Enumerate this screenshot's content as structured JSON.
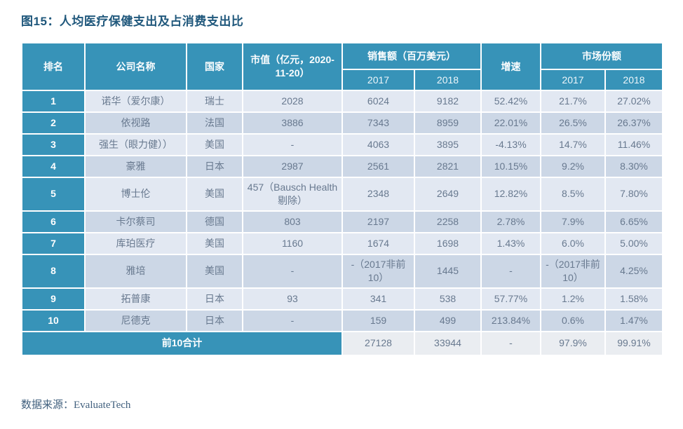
{
  "page": {
    "title": "图15：人均医疗保健支出及占消费支出比",
    "source": "数据来源：EvaluateTech"
  },
  "colors": {
    "header_teal": "#3793b8",
    "row_light": "#e2e8f2",
    "row_dark": "#ccd7e6",
    "total_row_bg": "#eaedf1",
    "title_blue": "#20587c",
    "data_text": "#68798f",
    "source_blue": "#41607e"
  },
  "table": {
    "headers": {
      "rank": "排名",
      "company": "公司名称",
      "country": "国家",
      "market_cap": "市值（亿元，2020-11-20）",
      "sales_group": "销售额（百万美元）",
      "growth": "增速",
      "share_group": "市场份额",
      "year_2017": "2017",
      "year_2018": "2018"
    },
    "rows": [
      {
        "rank": "1",
        "company": "诺华（爱尔康）",
        "country": "瑞士",
        "market_cap": "2028",
        "sales_2017": "6024",
        "sales_2018": "9182",
        "growth": "52.42%",
        "share_2017": "21.7%",
        "share_2018": "27.02%"
      },
      {
        "rank": "2",
        "company": "依视路",
        "country": "法国",
        "market_cap": "3886",
        "sales_2017": "7343",
        "sales_2018": "8959",
        "growth": "22.01%",
        "share_2017": "26.5%",
        "share_2018": "26.37%"
      },
      {
        "rank": "3",
        "company": "强生（眼力健））",
        "country": "美国",
        "market_cap": "-",
        "sales_2017": "4063",
        "sales_2018": "3895",
        "growth": "-4.13%",
        "share_2017": "14.7%",
        "share_2018": "11.46%"
      },
      {
        "rank": "4",
        "company": "豪雅",
        "country": "日本",
        "market_cap": "2987",
        "sales_2017": "2561",
        "sales_2018": "2821",
        "growth": "10.15%",
        "share_2017": "9.2%",
        "share_2018": "8.30%"
      },
      {
        "rank": "5",
        "company": "博士伦",
        "country": "美国",
        "market_cap": "457（Bausch Health剔除）",
        "sales_2017": "2348",
        "sales_2018": "2649",
        "growth": "12.82%",
        "share_2017": "8.5%",
        "share_2018": "7.80%"
      },
      {
        "rank": "6",
        "company": "卡尔蔡司",
        "country": "德国",
        "market_cap": "803",
        "sales_2017": "2197",
        "sales_2018": "2258",
        "growth": "2.78%",
        "share_2017": "7.9%",
        "share_2018": "6.65%"
      },
      {
        "rank": "7",
        "company": "库珀医疗",
        "country": "美国",
        "market_cap": "1160",
        "sales_2017": "1674",
        "sales_2018": "1698",
        "growth": "1.43%",
        "share_2017": "6.0%",
        "share_2018": "5.00%"
      },
      {
        "rank": "8",
        "company": "雅培",
        "country": "美国",
        "market_cap": "-",
        "sales_2017": "-（2017非前10）",
        "sales_2018": "1445",
        "growth": "-",
        "share_2017": "-（2017非前10）",
        "share_2018": "4.25%"
      },
      {
        "rank": "9",
        "company": "拓普康",
        "country": "日本",
        "market_cap": "93",
        "sales_2017": "341",
        "sales_2018": "538",
        "growth": "57.77%",
        "share_2017": "1.2%",
        "share_2018": "1.58%"
      },
      {
        "rank": "10",
        "company": "尼德克",
        "country": "日本",
        "market_cap": "-",
        "sales_2017": "159",
        "sales_2018": "499",
        "growth": "213.84%",
        "share_2017": "0.6%",
        "share_2018": "1.47%"
      }
    ],
    "total": {
      "label": "前10合计",
      "sales_2017": "27128",
      "sales_2018": "33944",
      "growth": "-",
      "share_2017": "97.9%",
      "share_2018": "99.91%"
    }
  }
}
